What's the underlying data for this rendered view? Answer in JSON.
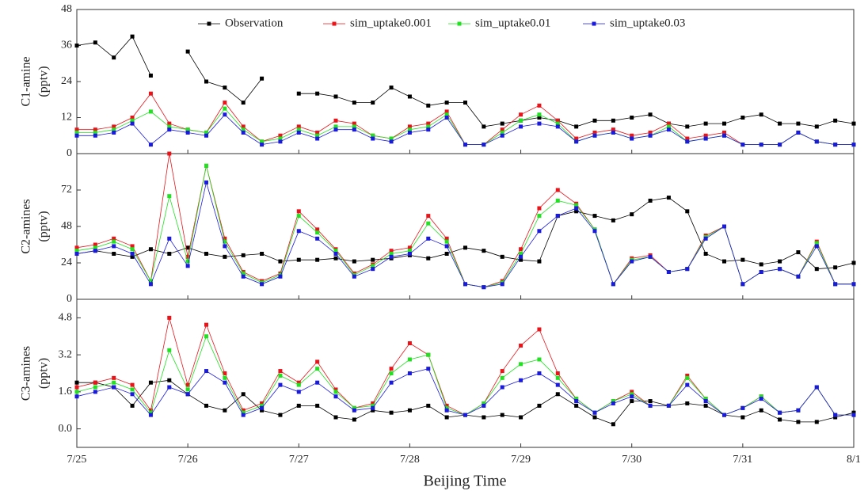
{
  "chart_data": [
    {
      "type": "line",
      "y_label": [
        "C1-amine",
        "(pptv)"
      ],
      "x": [
        0,
        4,
        8,
        12,
        16,
        20,
        24,
        28,
        32,
        36,
        40,
        44,
        48,
        52,
        56,
        60,
        64,
        68,
        72,
        76,
        80,
        84,
        88,
        92,
        96,
        100,
        104,
        108,
        112,
        116,
        120,
        124,
        128,
        132,
        136,
        140,
        144,
        148,
        152,
        156,
        160,
        164,
        168
      ],
      "ylim": [
        0,
        48
      ],
      "yticks": [
        0,
        12,
        24,
        36,
        48
      ],
      "legend": "top",
      "series": [
        {
          "name": "Observation",
          "color": "#000000",
          "values": [
            36,
            37,
            32,
            39,
            26,
            null,
            34,
            24,
            22,
            17,
            25,
            null,
            20,
            20,
            19,
            17,
            17,
            22,
            19,
            16,
            17,
            17,
            9,
            10,
            11,
            12,
            11,
            9,
            11,
            11,
            12,
            13,
            10,
            9,
            10,
            10,
            12,
            13,
            10,
            10,
            9,
            11,
            10
          ]
        },
        {
          "name": "sim_uptake0.001",
          "color": "#e8141a",
          "values": [
            8,
            8,
            9,
            12,
            20,
            10,
            8,
            7,
            17,
            9,
            4,
            6,
            9,
            7,
            11,
            10,
            6,
            5,
            9,
            10,
            14,
            3,
            3,
            8,
            13,
            16,
            11,
            5,
            7,
            8,
            6,
            7,
            10,
            5,
            6,
            7,
            3,
            3,
            3,
            7,
            4,
            3,
            3
          ]
        },
        {
          "name": "sim_uptake0.01",
          "color": "#22e022",
          "values": [
            7,
            7,
            8,
            11,
            14,
            9,
            8,
            7,
            15,
            8,
            4,
            5,
            8,
            6,
            9,
            9,
            6,
            5,
            8,
            9,
            13,
            3,
            3,
            7,
            11,
            13,
            10,
            4,
            6,
            7,
            5,
            6,
            9,
            4,
            5,
            6,
            3,
            3,
            3,
            7,
            4,
            3,
            3
          ]
        },
        {
          "name": "sim_uptake0.03",
          "color": "#1a1adc",
          "values": [
            6,
            6,
            7,
            10,
            3,
            8,
            7,
            6,
            13,
            7,
            3,
            4,
            7,
            5,
            8,
            8,
            5,
            4,
            7,
            8,
            12,
            3,
            3,
            6,
            9,
            10,
            9,
            4,
            6,
            7,
            5,
            6,
            8,
            4,
            5,
            6,
            3,
            3,
            3,
            7,
            4,
            3,
            3
          ]
        }
      ]
    },
    {
      "type": "line",
      "y_label": [
        "C2-amines",
        "(pptv)"
      ],
      "x": [
        0,
        4,
        8,
        12,
        16,
        20,
        24,
        28,
        32,
        36,
        40,
        44,
        48,
        52,
        56,
        60,
        64,
        68,
        72,
        76,
        80,
        84,
        88,
        92,
        96,
        100,
        104,
        108,
        112,
        116,
        120,
        124,
        128,
        132,
        136,
        140,
        144,
        148,
        152,
        156,
        160,
        164,
        168
      ],
      "ylim": [
        0,
        96
      ],
      "yticks": [
        0,
        24,
        48,
        72
      ],
      "series": [
        {
          "color": "#000000",
          "values": [
            30,
            32,
            30,
            28,
            33,
            30,
            34,
            30,
            28,
            29,
            30,
            25,
            26,
            26,
            27,
            25,
            26,
            27,
            29,
            27,
            30,
            34,
            32,
            28,
            26,
            25,
            55,
            58,
            55,
            52,
            56,
            65,
            67,
            58,
            30,
            25,
            26,
            23,
            25,
            31,
            20,
            21,
            24
          ]
        },
        {
          "color": "#e8141a",
          "values": [
            34,
            36,
            40,
            35,
            12,
            96,
            28,
            88,
            40,
            18,
            12,
            17,
            58,
            46,
            33,
            17,
            23,
            32,
            34,
            55,
            40,
            10,
            8,
            12,
            33,
            60,
            72,
            63,
            46,
            10,
            27,
            29,
            18,
            20,
            42,
            48,
            10,
            18,
            20,
            15,
            38,
            10,
            10
          ]
        },
        {
          "color": "#22e022",
          "values": [
            32,
            34,
            38,
            33,
            12,
            68,
            25,
            88,
            38,
            17,
            11,
            16,
            55,
            44,
            32,
            16,
            22,
            30,
            32,
            50,
            38,
            10,
            8,
            11,
            30,
            55,
            65,
            62,
            46,
            10,
            26,
            28,
            18,
            20,
            41,
            48,
            10,
            18,
            20,
            15,
            37,
            10,
            10
          ]
        },
        {
          "color": "#1a1adc",
          "values": [
            30,
            32,
            35,
            30,
            10,
            40,
            22,
            77,
            35,
            15,
            10,
            15,
            45,
            40,
            30,
            15,
            20,
            28,
            30,
            40,
            35,
            10,
            8,
            10,
            28,
            45,
            55,
            60,
            45,
            10,
            25,
            28,
            18,
            20,
            40,
            48,
            10,
            18,
            20,
            15,
            35,
            10,
            10
          ]
        }
      ]
    },
    {
      "type": "line",
      "y_label": [
        "C3-amines",
        "(pptv)"
      ],
      "x_label": "Beijing Time",
      "x": [
        0,
        4,
        8,
        12,
        16,
        20,
        24,
        28,
        32,
        36,
        40,
        44,
        48,
        52,
        56,
        60,
        64,
        68,
        72,
        76,
        80,
        84,
        88,
        92,
        96,
        100,
        104,
        108,
        112,
        116,
        120,
        124,
        128,
        132,
        136,
        140,
        144,
        148,
        152,
        156,
        160,
        164,
        168
      ],
      "xlim": [
        0,
        168
      ],
      "xticks": [
        {
          "value": 0,
          "label": "7/25"
        },
        {
          "value": 24,
          "label": "7/26"
        },
        {
          "value": 48,
          "label": "7/27"
        },
        {
          "value": 72,
          "label": "7/28"
        },
        {
          "value": 96,
          "label": "7/29"
        },
        {
          "value": 120,
          "label": "7/30"
        },
        {
          "value": 144,
          "label": "7/31"
        },
        {
          "value": 168,
          "label": "8/1"
        }
      ],
      "ylim": [
        -0.8,
        5.6
      ],
      "yticks": [
        {
          "value": 0,
          "label": "0.0"
        },
        1.6,
        3.2,
        4.8
      ],
      "series": [
        {
          "color": "#000000",
          "values": [
            2.0,
            2.0,
            1.8,
            1.0,
            2.0,
            2.1,
            1.5,
            1.0,
            0.8,
            1.5,
            0.8,
            0.6,
            1.0,
            1.0,
            0.5,
            0.4,
            0.8,
            0.7,
            0.8,
            1.0,
            0.5,
            0.6,
            0.5,
            0.6,
            0.5,
            1.0,
            1.5,
            1.0,
            0.5,
            0.2,
            1.2,
            1.2,
            1.0,
            1.1,
            1.0,
            0.6,
            0.5,
            0.8,
            0.4,
            0.3,
            0.3,
            0.5,
            0.7
          ]
        },
        {
          "color": "#e8141a",
          "values": [
            1.8,
            2.0,
            2.2,
            1.9,
            0.8,
            4.8,
            1.9,
            4.5,
            2.4,
            0.8,
            1.1,
            2.5,
            2.0,
            2.9,
            1.7,
            0.9,
            1.1,
            2.6,
            3.7,
            3.2,
            1.0,
            0.6,
            1.1,
            2.5,
            3.6,
            4.3,
            2.4,
            1.3,
            0.7,
            1.2,
            1.6,
            1.0,
            1.0,
            2.3,
            1.3,
            0.6,
            0.9,
            1.4,
            0.7,
            0.8,
            1.8,
            0.6,
            0.6
          ]
        },
        {
          "color": "#22e022",
          "values": [
            1.6,
            1.8,
            2.0,
            1.7,
            0.7,
            3.4,
            1.7,
            4.0,
            2.2,
            0.7,
            1.0,
            2.3,
            1.9,
            2.6,
            1.6,
            0.9,
            1.0,
            2.4,
            3.0,
            3.2,
            0.9,
            0.6,
            1.1,
            2.2,
            2.8,
            3.0,
            2.2,
            1.3,
            0.7,
            1.2,
            1.5,
            1.0,
            1.0,
            2.2,
            1.3,
            0.6,
            0.9,
            1.4,
            0.7,
            0.8,
            1.8,
            0.6,
            0.6
          ]
        },
        {
          "color": "#1a1adc",
          "values": [
            1.4,
            1.6,
            1.8,
            1.5,
            0.6,
            1.8,
            1.5,
            2.5,
            2.0,
            0.6,
            0.9,
            1.9,
            1.6,
            2.0,
            1.4,
            0.8,
            0.9,
            2.0,
            2.4,
            2.6,
            0.8,
            0.6,
            1.0,
            1.8,
            2.1,
            2.4,
            1.9,
            1.2,
            0.7,
            1.1,
            1.4,
            1.0,
            1.0,
            1.9,
            1.2,
            0.6,
            0.9,
            1.3,
            0.7,
            0.8,
            1.8,
            0.6,
            0.6
          ]
        }
      ]
    }
  ]
}
